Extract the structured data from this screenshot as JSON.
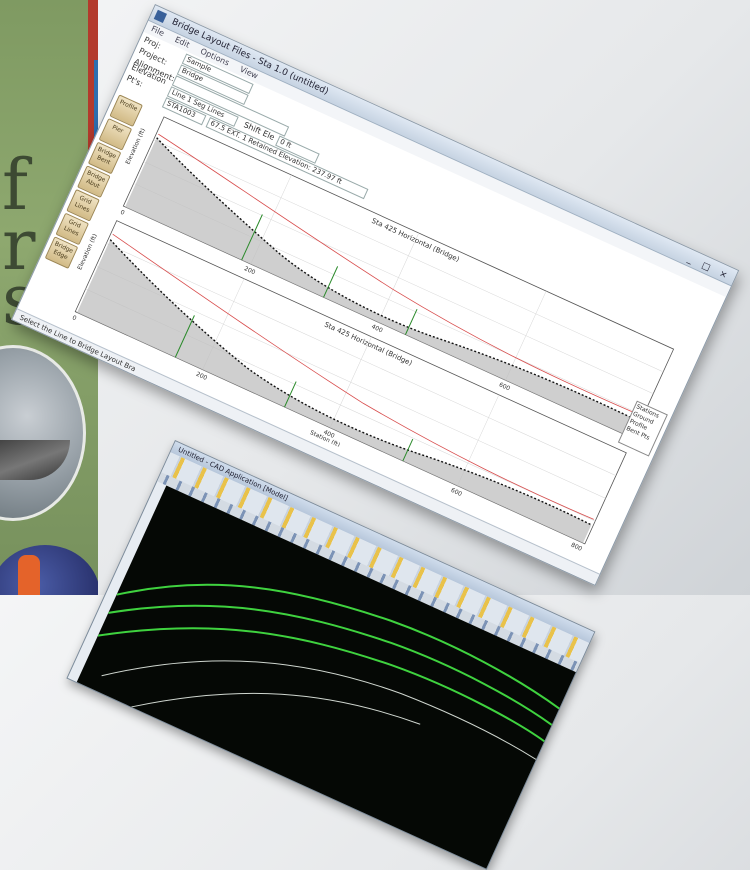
{
  "cover": {
    "letters": [
      "f",
      "r",
      "s"
    ],
    "colors": {
      "green": "#8ea86f",
      "red": "#b33a2c",
      "blue": "#2e6fb0"
    }
  },
  "main_window": {
    "title": "Bridge Layout Files - Sta 1.0 (untitled)",
    "window_buttons": "_ □ ×",
    "menu": [
      "File",
      "Edit",
      "Options",
      "View"
    ],
    "form": {
      "proj_label": "Proj:",
      "proj_value": "Sample",
      "project_label": "Project:",
      "project_value": "Bridge",
      "alignment_label": "Alignment:",
      "alignment_value": "",
      "elevation_label": "Elevation Pt's:",
      "elevation_value": "Line 1 Seg Lines",
      "shift_label": "Shift Ele",
      "shift_value": "0 ft",
      "station_value": "STA1003",
      "offset_value": "67.5 EXT. 1 Retained Elevation: 237.97 ft"
    },
    "tools": [
      "Profile",
      "Pier",
      "Bridge Bent",
      "Bridge Abut",
      "Grid Lines",
      "Grid Lines",
      "Bridge Edge"
    ],
    "legend": [
      "Stations",
      "Ground",
      "Profile",
      "Bent Pts"
    ],
    "status": "Select the Line to Bridge Layout Bra"
  },
  "plot_top": {
    "title": "Sta 425   Horizontal (Bridge)",
    "ylabel": "Elevation (ft)",
    "xticks": [
      "0",
      "200",
      "400",
      "600",
      "800"
    ],
    "yticks": [
      "2850",
      "2800",
      "2750",
      "2700"
    ]
  },
  "plot_bottom": {
    "title": "Sta 425   Horizontal (Bridge)",
    "ylabel": "Elevation (ft)",
    "xlabel": "Station (ft)",
    "xticks": [
      "0",
      "200",
      "400",
      "600",
      "800"
    ],
    "yticks": [
      "2850",
      "2800",
      "2750",
      "2700"
    ]
  },
  "cad_window": {
    "title": "Untitled - CAD Application [Model]",
    "canvas_color": "#050805",
    "curve_color": "#3fd23f"
  }
}
